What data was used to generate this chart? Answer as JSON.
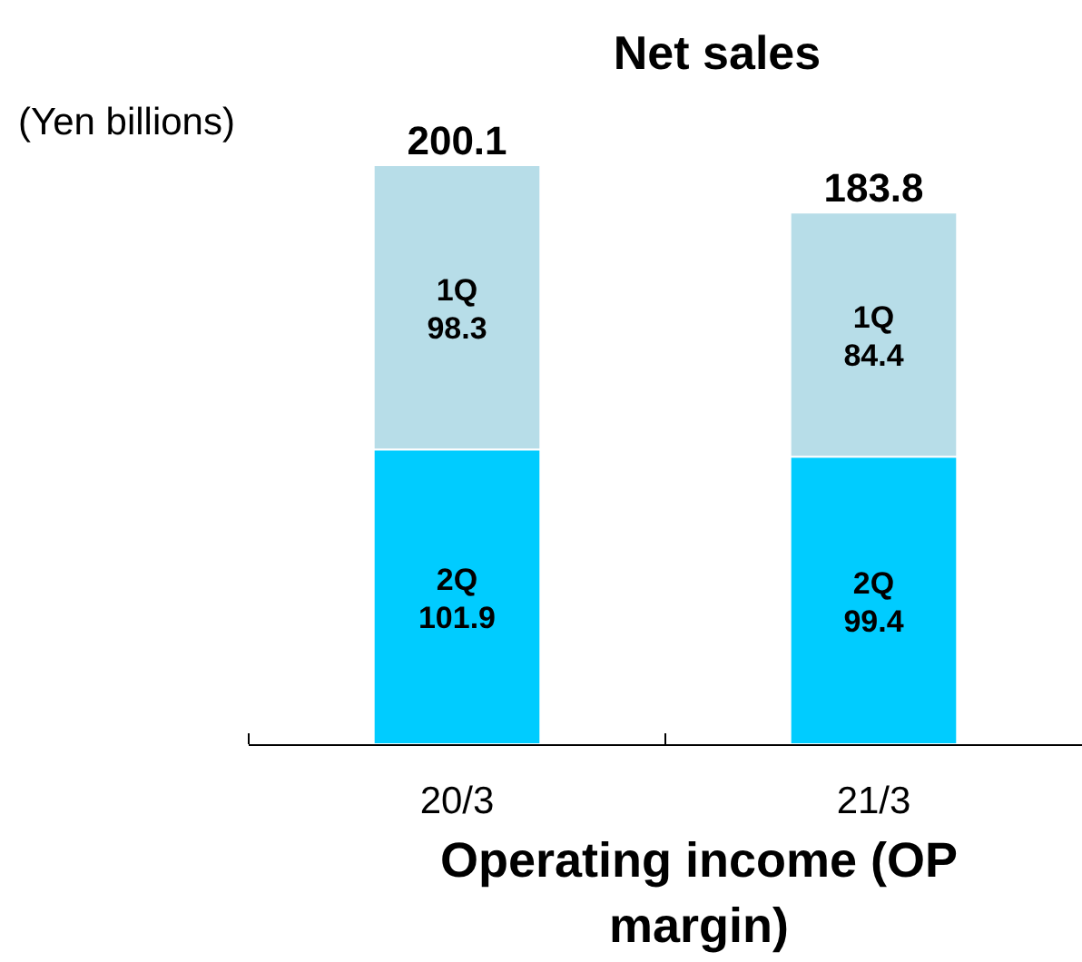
{
  "chart_data": {
    "type": "bar",
    "title": "Net sales",
    "stacked": true,
    "data_labels": true,
    "categories": [
      "20/3",
      "21/3"
    ],
    "series": [
      {
        "name": "2Q",
        "color": "#00ccff",
        "values": [
          101.9,
          99.4
        ]
      },
      {
        "name": "1Q",
        "color": "#b7dde8",
        "values": [
          98.3,
          84.4
        ]
      }
    ],
    "totals": [
      "200.1",
      "183.8"
    ],
    "annotations": [
      "(Yen billions)",
      "Operating income (OP margin)"
    ]
  }
}
